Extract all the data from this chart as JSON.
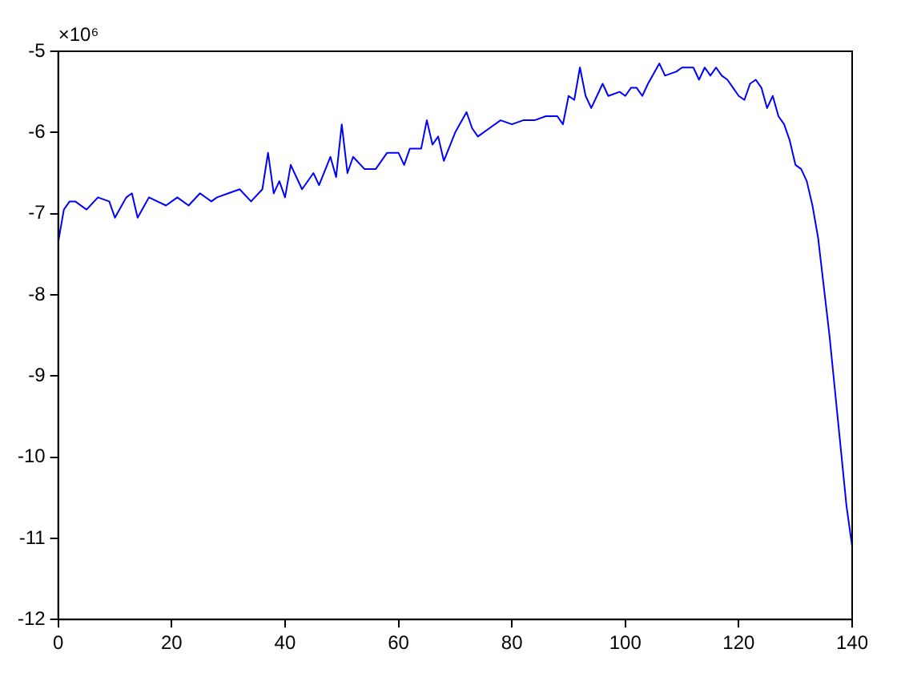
{
  "chart_data": {
    "type": "line",
    "annotations": [
      "×10⁶"
    ],
    "x": [
      0,
      1,
      2,
      3,
      5,
      7,
      9,
      10,
      12,
      13,
      14,
      16,
      19,
      21,
      23,
      25,
      27,
      28,
      30,
      32,
      34,
      36,
      37,
      38,
      39,
      40,
      41,
      43,
      45,
      46,
      48,
      49,
      50,
      51,
      52,
      54,
      56,
      58,
      60,
      61,
      62,
      64,
      65,
      66,
      67,
      68,
      70,
      72,
      73,
      74,
      76,
      78,
      80,
      82,
      84,
      86,
      88,
      89,
      90,
      91,
      92,
      93,
      94,
      96,
      97,
      99,
      100,
      101,
      102,
      103,
      104,
      106,
      107,
      109,
      110,
      112,
      113,
      114,
      115,
      116,
      117,
      118,
      119,
      120,
      121,
      122,
      123,
      124,
      125,
      126,
      127,
      128,
      129,
      130,
      131,
      132,
      133,
      134,
      135,
      136,
      137,
      138,
      139,
      140
    ],
    "series": [
      {
        "color": "#0000ff",
        "values": [
          -7.35,
          -6.95,
          -6.85,
          -6.85,
          -6.95,
          -6.8,
          -6.85,
          -7.05,
          -6.8,
          -6.75,
          -7.05,
          -6.8,
          -6.9,
          -6.8,
          -6.9,
          -6.75,
          -6.85,
          -6.8,
          -6.75,
          -6.7,
          -6.85,
          -6.7,
          -6.25,
          -6.75,
          -6.6,
          -6.8,
          -6.4,
          -6.7,
          -6.5,
          -6.65,
          -6.3,
          -6.55,
          -5.9,
          -6.5,
          -6.3,
          -6.45,
          -6.45,
          -6.25,
          -6.25,
          -6.4,
          -6.2,
          -6.2,
          -5.85,
          -6.15,
          -6.05,
          -6.35,
          -6.0,
          -5.75,
          -5.95,
          -6.05,
          -5.95,
          -5.85,
          -5.9,
          -5.85,
          -5.85,
          -5.8,
          -5.8,
          -5.9,
          -5.55,
          -5.6,
          -5.2,
          -5.55,
          -5.7,
          -5.4,
          -5.55,
          -5.5,
          -5.55,
          -5.45,
          -5.45,
          -5.55,
          -5.4,
          -5.15,
          -5.3,
          -5.25,
          -5.2,
          -5.2,
          -5.35,
          -5.2,
          -5.3,
          -5.2,
          -5.3,
          -5.35,
          -5.45,
          -5.55,
          -5.6,
          -5.4,
          -5.35,
          -5.45,
          -5.7,
          -5.55,
          -5.8,
          -5.9,
          -6.1,
          -6.4,
          -6.45,
          -6.6,
          -6.9,
          -7.3,
          -7.9,
          -8.5,
          -9.2,
          -9.9,
          -10.6,
          -11.1
        ]
      }
    ],
    "xlim": [
      0,
      140
    ],
    "xticks": [
      0,
      20,
      40,
      60,
      80,
      100,
      120,
      140
    ],
    "ylim": [
      -12,
      -5
    ],
    "yticks": [
      -12,
      -11,
      -10,
      -9,
      -8,
      -7,
      -6,
      -5
    ],
    "grid": false,
    "legend": false,
    "marker": "none",
    "line_style": "solid"
  }
}
